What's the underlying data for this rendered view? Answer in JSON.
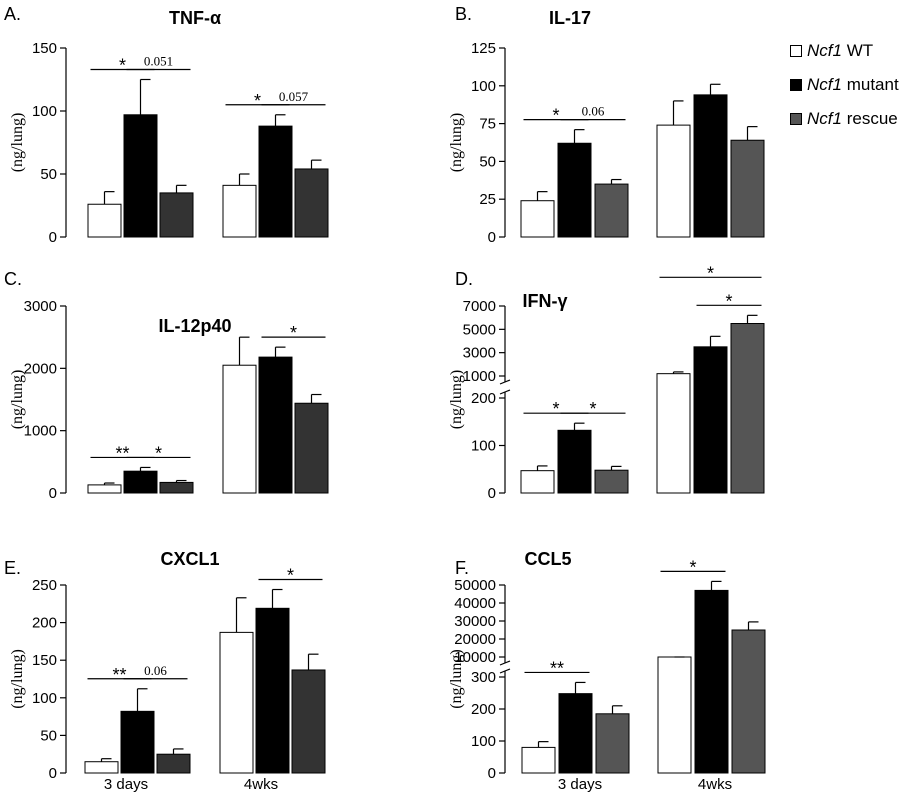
{
  "legend": [
    {
      "gene": "Ncf1",
      "label": "WT",
      "color": "#ffffff"
    },
    {
      "gene": "Ncf1",
      "label": "mutant",
      "color": "#000000"
    },
    {
      "gene": "Ncf1",
      "label": "rescue",
      "color": "#555555"
    }
  ],
  "chart_data": [
    {
      "panel": "A.",
      "title": "TNF-α",
      "type": "bar",
      "ylabel": "(ng/lung)",
      "ylim": [
        0,
        150
      ],
      "yticks": [
        0,
        50,
        100,
        150
      ],
      "groups": [
        {
          "label": "",
          "values": [
            26,
            97,
            35
          ],
          "errors": [
            10,
            28,
            6
          ]
        },
        {
          "label": "",
          "values": [
            41,
            88,
            54
          ],
          "errors": [
            9,
            9,
            7
          ]
        }
      ],
      "annotations": [
        {
          "group": 0,
          "from": 0,
          "to": 1,
          "text": "*"
        },
        {
          "group": 0,
          "from": 1,
          "to": 2,
          "text": "0.051"
        },
        {
          "group": 1,
          "from": 0,
          "to": 1,
          "text": "*"
        },
        {
          "group": 1,
          "from": 1,
          "to": 2,
          "text": "0.057"
        }
      ]
    },
    {
      "panel": "B.",
      "title": "IL-17",
      "type": "bar",
      "ylabel": "(ng/lung)",
      "ylim": [
        0,
        125
      ],
      "yticks": [
        0,
        25,
        50,
        75,
        100,
        125
      ],
      "groups": [
        {
          "label": "",
          "values": [
            24,
            62,
            35
          ],
          "errors": [
            6,
            9,
            3
          ]
        },
        {
          "label": "",
          "values": [
            74,
            94,
            64
          ],
          "errors": [
            16,
            7,
            9
          ]
        }
      ],
      "annotations": [
        {
          "group": 0,
          "from": 0,
          "to": 1,
          "text": "*"
        },
        {
          "group": 0,
          "from": 1,
          "to": 2,
          "text": "0.06"
        }
      ]
    },
    {
      "panel": "C.",
      "title": "IL-12p40",
      "type": "bar",
      "ylabel": "(ng/lung)",
      "ylim": [
        0,
        3000
      ],
      "yticks": [
        0,
        1000,
        2000,
        3000
      ],
      "groups": [
        {
          "label": "",
          "values": [
            130,
            350,
            170
          ],
          "errors": [
            30,
            60,
            30
          ]
        },
        {
          "label": "",
          "values": [
            2050,
            2180,
            1440
          ],
          "errors": [
            450,
            160,
            140
          ]
        }
      ],
      "annotations": [
        {
          "group": 0,
          "from": 0,
          "to": 1,
          "text": "**"
        },
        {
          "group": 0,
          "from": 1,
          "to": 2,
          "text": "*"
        },
        {
          "group": 1,
          "from": 1,
          "to": 2,
          "text": "*"
        }
      ]
    },
    {
      "panel": "D.",
      "title": "IFN-γ",
      "type": "bar",
      "ylabel": "(ng/lung)",
      "broken_axis": true,
      "lower_ylim": [
        0,
        200
      ],
      "lower_yticks": [
        0,
        100,
        200
      ],
      "upper_ylim": [
        1000,
        7000
      ],
      "upper_yticks": [
        1000,
        3000,
        5000,
        7000
      ],
      "groups": [
        {
          "label": "",
          "values": [
            47,
            132,
            48
          ],
          "errors": [
            10,
            15,
            8
          ]
        },
        {
          "label": "",
          "values": [
            1200,
            3500,
            5500
          ],
          "errors": [
            150,
            900,
            700
          ]
        }
      ],
      "annotations": [
        {
          "group": 0,
          "from": 0,
          "to": 1,
          "text": "*"
        },
        {
          "group": 0,
          "from": 1,
          "to": 2,
          "text": "*"
        },
        {
          "group": 1,
          "from": 1,
          "to": 2,
          "text": "*"
        },
        {
          "group": 1,
          "from": 0,
          "to": 2,
          "text": "*"
        }
      ]
    },
    {
      "panel": "E.",
      "title": "CXCL1",
      "type": "bar",
      "ylabel": "(ng/lung)",
      "ylim": [
        0,
        250
      ],
      "yticks": [
        0,
        50,
        100,
        150,
        200,
        250
      ],
      "groups": [
        {
          "label": "3 days",
          "values": [
            15,
            82,
            25
          ],
          "errors": [
            4,
            30,
            7
          ]
        },
        {
          "label": "4wks",
          "values": [
            187,
            219,
            137
          ],
          "errors": [
            46,
            25,
            21
          ]
        }
      ],
      "annotations": [
        {
          "group": 0,
          "from": 0,
          "to": 1,
          "text": "**"
        },
        {
          "group": 0,
          "from": 1,
          "to": 2,
          "text": "0.06"
        },
        {
          "group": 1,
          "from": 1,
          "to": 2,
          "text": "*"
        }
      ]
    },
    {
      "panel": "F.",
      "title": "CCL5",
      "type": "bar",
      "ylabel": "(ng/lung)",
      "broken_axis": true,
      "lower_ylim": [
        0,
        300
      ],
      "lower_yticks": [
        0,
        100,
        200,
        300
      ],
      "upper_ylim": [
        10000,
        50000
      ],
      "upper_yticks": [
        10000,
        20000,
        30000,
        40000,
        50000
      ],
      "groups": [
        {
          "label": "3 days",
          "values": [
            80,
            248,
            185
          ],
          "errors": [
            18,
            35,
            25
          ]
        },
        {
          "label": "4wks",
          "values": [
            7000,
            47000,
            25000
          ],
          "errors": [
            300,
            5000,
            4500
          ]
        }
      ],
      "annotations": [
        {
          "group": 0,
          "from": 0,
          "to": 1,
          "text": "**"
        },
        {
          "group": 1,
          "from": 0,
          "to": 1,
          "text": "*"
        }
      ]
    }
  ]
}
